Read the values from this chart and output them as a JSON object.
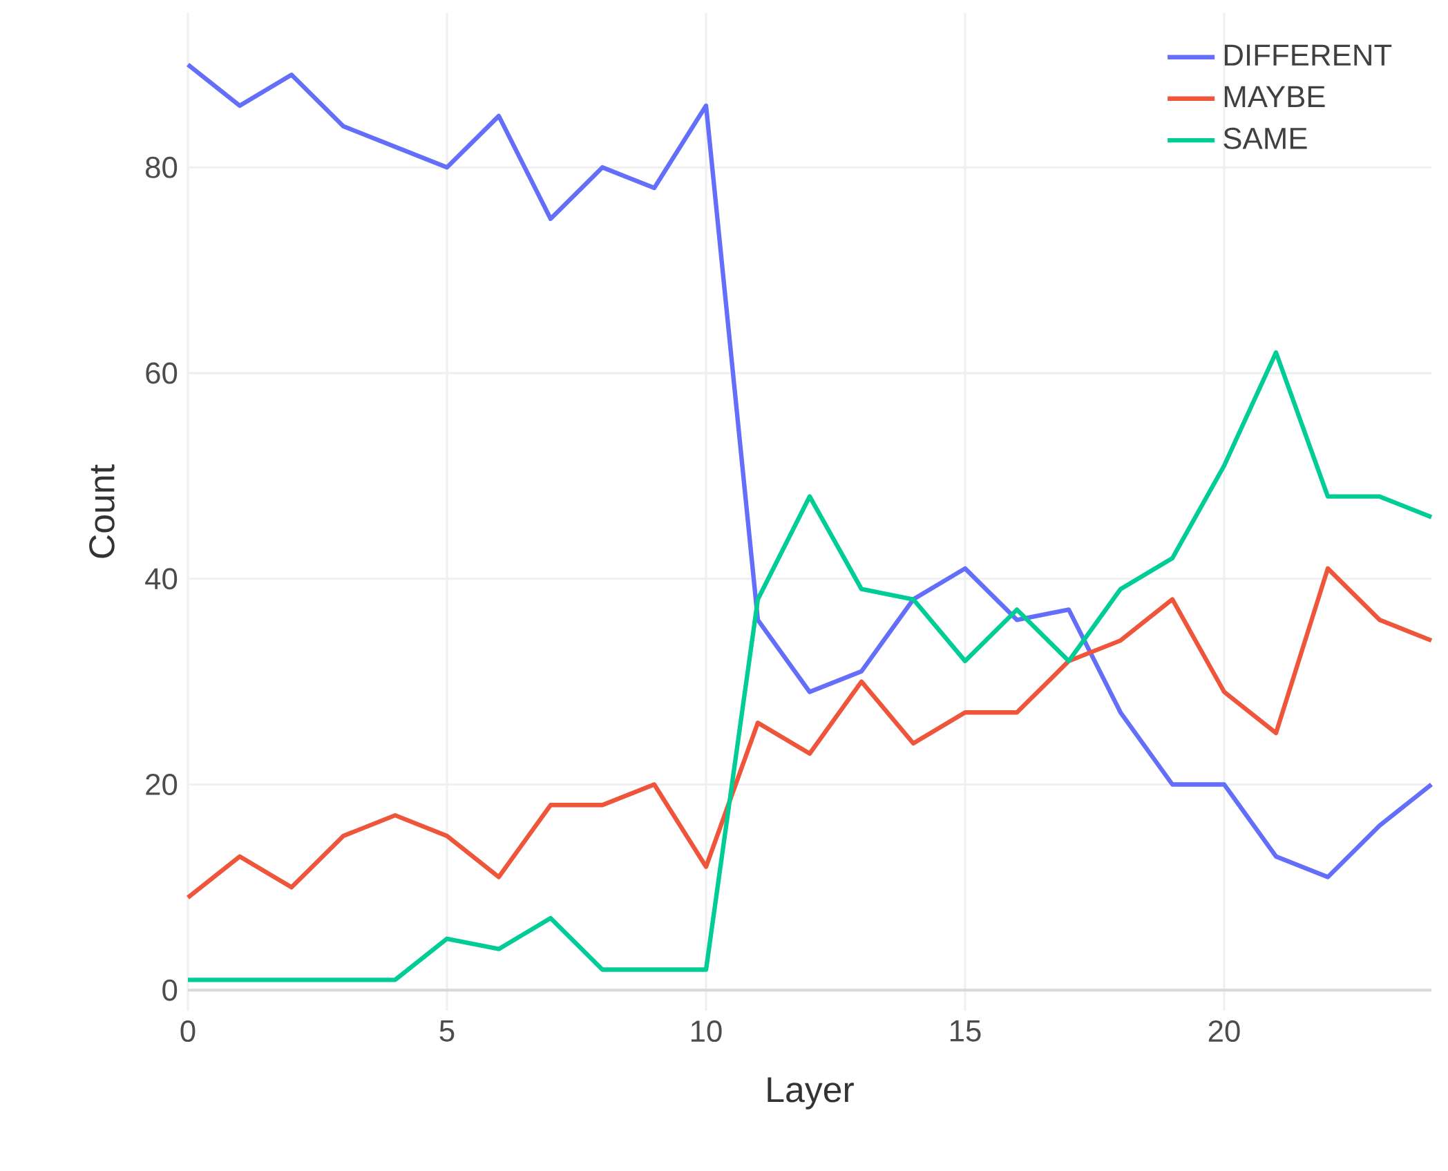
{
  "chart_data": {
    "type": "line",
    "xlabel": "Layer",
    "ylabel": "Count",
    "x": [
      0,
      1,
      2,
      3,
      4,
      5,
      6,
      7,
      8,
      9,
      10,
      11,
      12,
      13,
      14,
      15,
      16,
      17,
      18,
      19,
      20,
      21,
      22,
      23,
      24
    ],
    "series": [
      {
        "name": "DIFFERENT",
        "color": "#636efa",
        "values": [
          90,
          86,
          89,
          84,
          82,
          80,
          85,
          75,
          80,
          78,
          86,
          36,
          29,
          31,
          38,
          41,
          36,
          37,
          27,
          20,
          20,
          13,
          11,
          16,
          20
        ]
      },
      {
        "name": "MAYBE",
        "color": "#ef553b",
        "values": [
          9,
          13,
          10,
          15,
          17,
          15,
          11,
          18,
          18,
          20,
          12,
          26,
          23,
          30,
          24,
          27,
          27,
          32,
          34,
          38,
          29,
          25,
          41,
          36,
          34
        ]
      },
      {
        "name": "SAME",
        "color": "#00cc96",
        "values": [
          1,
          1,
          1,
          1,
          1,
          5,
          4,
          7,
          2,
          2,
          2,
          38,
          48,
          39,
          38,
          32,
          37,
          32,
          39,
          42,
          51,
          62,
          48,
          48,
          46
        ]
      }
    ],
    "xlim": [
      0,
      24
    ],
    "ylim": [
      -2,
      95
    ],
    "xticks": [
      0,
      5,
      10,
      15,
      20
    ],
    "yticks": [
      0,
      20,
      40,
      60,
      80
    ],
    "grid": true,
    "legend": "top right",
    "line_style": "solid",
    "marker": "none"
  }
}
